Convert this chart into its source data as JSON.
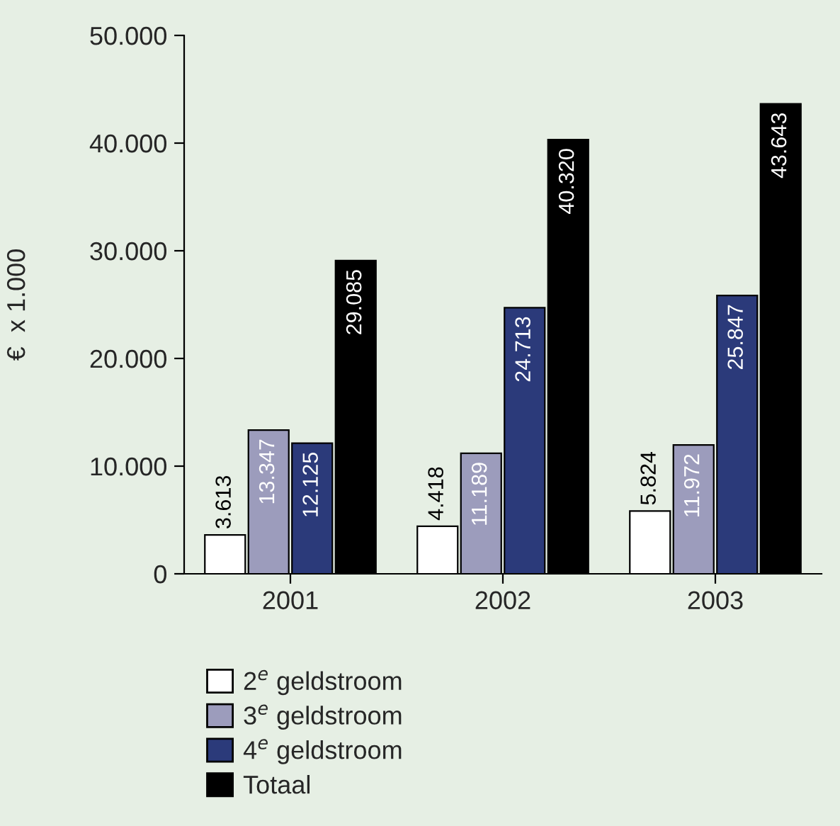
{
  "chart_data": {
    "type": "bar",
    "ylabel": "€  x 1.000",
    "categories": [
      "2001",
      "2002",
      "2003"
    ],
    "ylim": [
      0,
      50000
    ],
    "yticks": [
      {
        "value": 0,
        "label": "0"
      },
      {
        "value": 10000,
        "label": "10.000"
      },
      {
        "value": 20000,
        "label": "20.000"
      },
      {
        "value": 30000,
        "label": "30.000"
      },
      {
        "value": 40000,
        "label": "40.000"
      },
      {
        "value": 50000,
        "label": "50.000"
      }
    ],
    "series": [
      {
        "name": "2$^{e}$ geldstroom",
        "color": "#ffffff",
        "values": [
          3613,
          4418,
          5824
        ],
        "value_labels": [
          "3.613",
          "4.418",
          "5.824"
        ]
      },
      {
        "name": "3$^{e}$ geldstroom",
        "color": "#9c9cbc",
        "values": [
          13347,
          11189,
          11972
        ],
        "value_labels": [
          "13.347",
          "11.189",
          "11.972"
        ]
      },
      {
        "name": "4$^{e}$ geldstroom",
        "color": "#2b3a7a",
        "values": [
          12125,
          24713,
          25847
        ],
        "value_labels": [
          "12.125",
          "24.713",
          "25.847"
        ]
      },
      {
        "name": "Totaal",
        "color": "#000000",
        "values": [
          29085,
          40320,
          43643
        ],
        "value_labels": [
          "29.085",
          "40.320",
          "43.643"
        ]
      }
    ],
    "grid": false,
    "legend": "bottom left"
  }
}
